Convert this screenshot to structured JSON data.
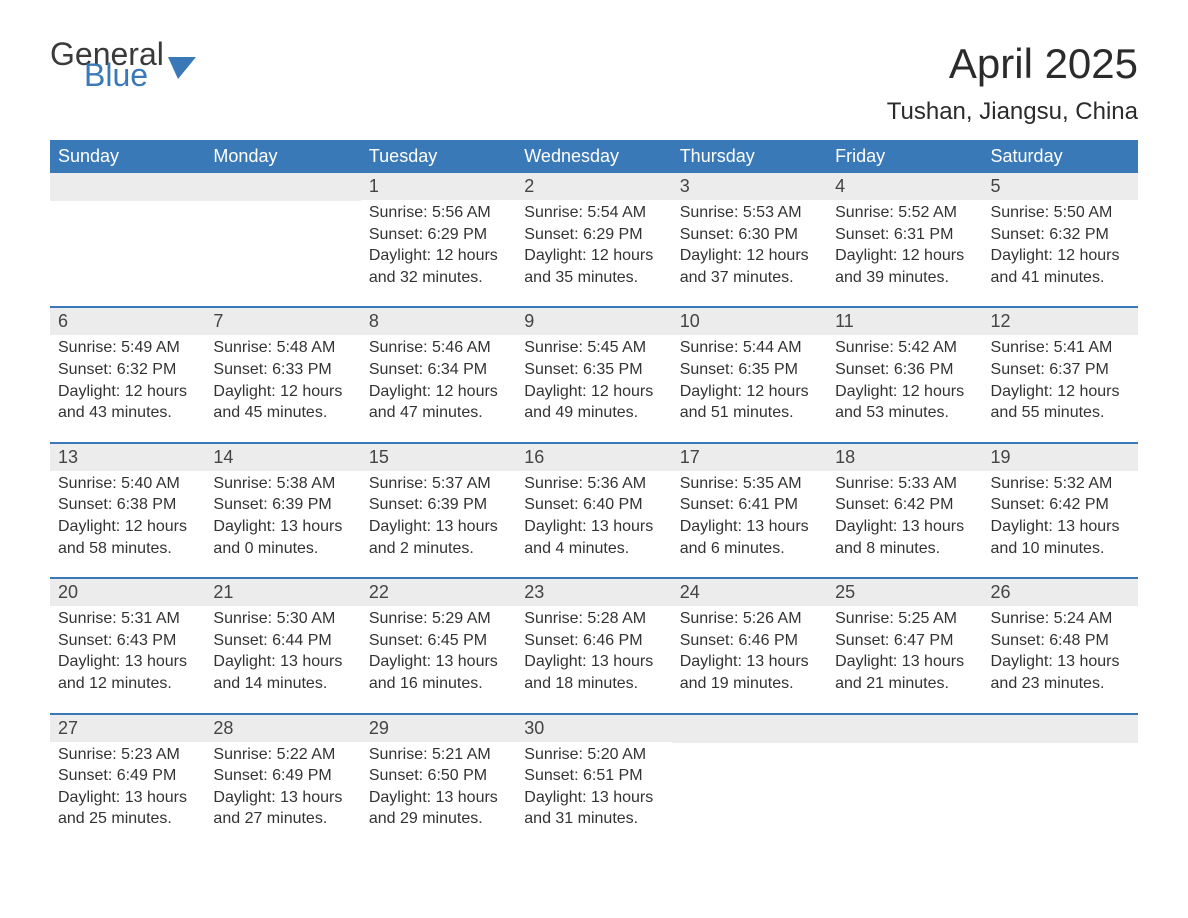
{
  "logo": {
    "word1": "General",
    "word2": "Blue"
  },
  "title": "April 2025",
  "subtitle": "Tushan, Jiangsu, China",
  "colors": {
    "header_bg": "#3a79b7",
    "header_text": "#ffffff",
    "daynum_bg": "#ececec",
    "body_text": "#333333",
    "rule": "#3a79b7",
    "logo_gray": "#3a3a3a",
    "logo_blue": "#3a79b7"
  },
  "dow": [
    "Sunday",
    "Monday",
    "Tuesday",
    "Wednesday",
    "Thursday",
    "Friday",
    "Saturday"
  ],
  "weeks": [
    [
      {
        "n": "",
        "lines": []
      },
      {
        "n": "",
        "lines": []
      },
      {
        "n": "1",
        "lines": [
          "Sunrise: 5:56 AM",
          "Sunset: 6:29 PM",
          "Daylight: 12 hours",
          "and 32 minutes."
        ]
      },
      {
        "n": "2",
        "lines": [
          "Sunrise: 5:54 AM",
          "Sunset: 6:29 PM",
          "Daylight: 12 hours",
          "and 35 minutes."
        ]
      },
      {
        "n": "3",
        "lines": [
          "Sunrise: 5:53 AM",
          "Sunset: 6:30 PM",
          "Daylight: 12 hours",
          "and 37 minutes."
        ]
      },
      {
        "n": "4",
        "lines": [
          "Sunrise: 5:52 AM",
          "Sunset: 6:31 PM",
          "Daylight: 12 hours",
          "and 39 minutes."
        ]
      },
      {
        "n": "5",
        "lines": [
          "Sunrise: 5:50 AM",
          "Sunset: 6:32 PM",
          "Daylight: 12 hours",
          "and 41 minutes."
        ]
      }
    ],
    [
      {
        "n": "6",
        "lines": [
          "Sunrise: 5:49 AM",
          "Sunset: 6:32 PM",
          "Daylight: 12 hours",
          "and 43 minutes."
        ]
      },
      {
        "n": "7",
        "lines": [
          "Sunrise: 5:48 AM",
          "Sunset: 6:33 PM",
          "Daylight: 12 hours",
          "and 45 minutes."
        ]
      },
      {
        "n": "8",
        "lines": [
          "Sunrise: 5:46 AM",
          "Sunset: 6:34 PM",
          "Daylight: 12 hours",
          "and 47 minutes."
        ]
      },
      {
        "n": "9",
        "lines": [
          "Sunrise: 5:45 AM",
          "Sunset: 6:35 PM",
          "Daylight: 12 hours",
          "and 49 minutes."
        ]
      },
      {
        "n": "10",
        "lines": [
          "Sunrise: 5:44 AM",
          "Sunset: 6:35 PM",
          "Daylight: 12 hours",
          "and 51 minutes."
        ]
      },
      {
        "n": "11",
        "lines": [
          "Sunrise: 5:42 AM",
          "Sunset: 6:36 PM",
          "Daylight: 12 hours",
          "and 53 minutes."
        ]
      },
      {
        "n": "12",
        "lines": [
          "Sunrise: 5:41 AM",
          "Sunset: 6:37 PM",
          "Daylight: 12 hours",
          "and 55 minutes."
        ]
      }
    ],
    [
      {
        "n": "13",
        "lines": [
          "Sunrise: 5:40 AM",
          "Sunset: 6:38 PM",
          "Daylight: 12 hours",
          "and 58 minutes."
        ]
      },
      {
        "n": "14",
        "lines": [
          "Sunrise: 5:38 AM",
          "Sunset: 6:39 PM",
          "Daylight: 13 hours",
          "and 0 minutes."
        ]
      },
      {
        "n": "15",
        "lines": [
          "Sunrise: 5:37 AM",
          "Sunset: 6:39 PM",
          "Daylight: 13 hours",
          "and 2 minutes."
        ]
      },
      {
        "n": "16",
        "lines": [
          "Sunrise: 5:36 AM",
          "Sunset: 6:40 PM",
          "Daylight: 13 hours",
          "and 4 minutes."
        ]
      },
      {
        "n": "17",
        "lines": [
          "Sunrise: 5:35 AM",
          "Sunset: 6:41 PM",
          "Daylight: 13 hours",
          "and 6 minutes."
        ]
      },
      {
        "n": "18",
        "lines": [
          "Sunrise: 5:33 AM",
          "Sunset: 6:42 PM",
          "Daylight: 13 hours",
          "and 8 minutes."
        ]
      },
      {
        "n": "19",
        "lines": [
          "Sunrise: 5:32 AM",
          "Sunset: 6:42 PM",
          "Daylight: 13 hours",
          "and 10 minutes."
        ]
      }
    ],
    [
      {
        "n": "20",
        "lines": [
          "Sunrise: 5:31 AM",
          "Sunset: 6:43 PM",
          "Daylight: 13 hours",
          "and 12 minutes."
        ]
      },
      {
        "n": "21",
        "lines": [
          "Sunrise: 5:30 AM",
          "Sunset: 6:44 PM",
          "Daylight: 13 hours",
          "and 14 minutes."
        ]
      },
      {
        "n": "22",
        "lines": [
          "Sunrise: 5:29 AM",
          "Sunset: 6:45 PM",
          "Daylight: 13 hours",
          "and 16 minutes."
        ]
      },
      {
        "n": "23",
        "lines": [
          "Sunrise: 5:28 AM",
          "Sunset: 6:46 PM",
          "Daylight: 13 hours",
          "and 18 minutes."
        ]
      },
      {
        "n": "24",
        "lines": [
          "Sunrise: 5:26 AM",
          "Sunset: 6:46 PM",
          "Daylight: 13 hours",
          "and 19 minutes."
        ]
      },
      {
        "n": "25",
        "lines": [
          "Sunrise: 5:25 AM",
          "Sunset: 6:47 PM",
          "Daylight: 13 hours",
          "and 21 minutes."
        ]
      },
      {
        "n": "26",
        "lines": [
          "Sunrise: 5:24 AM",
          "Sunset: 6:48 PM",
          "Daylight: 13 hours",
          "and 23 minutes."
        ]
      }
    ],
    [
      {
        "n": "27",
        "lines": [
          "Sunrise: 5:23 AM",
          "Sunset: 6:49 PM",
          "Daylight: 13 hours",
          "and 25 minutes."
        ]
      },
      {
        "n": "28",
        "lines": [
          "Sunrise: 5:22 AM",
          "Sunset: 6:49 PM",
          "Daylight: 13 hours",
          "and 27 minutes."
        ]
      },
      {
        "n": "29",
        "lines": [
          "Sunrise: 5:21 AM",
          "Sunset: 6:50 PM",
          "Daylight: 13 hours",
          "and 29 minutes."
        ]
      },
      {
        "n": "30",
        "lines": [
          "Sunrise: 5:20 AM",
          "Sunset: 6:51 PM",
          "Daylight: 13 hours",
          "and 31 minutes."
        ]
      },
      {
        "n": "",
        "lines": []
      },
      {
        "n": "",
        "lines": []
      },
      {
        "n": "",
        "lines": []
      }
    ]
  ]
}
